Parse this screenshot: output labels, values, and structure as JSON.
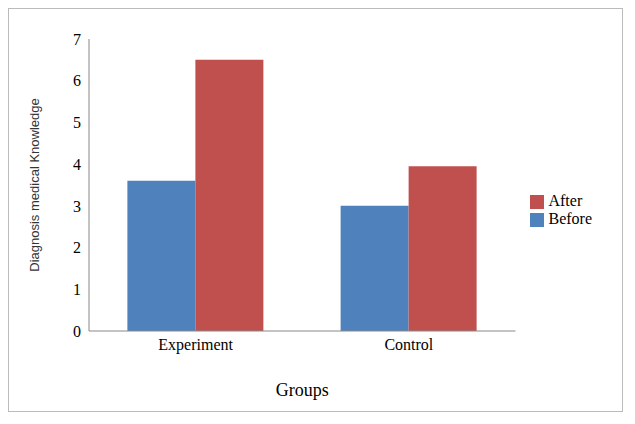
{
  "chart_data": {
    "type": "bar",
    "categories": [
      "Experiment",
      "Control"
    ],
    "series": [
      {
        "name": "Before",
        "color": "#4f81bd",
        "values": [
          3.6,
          3.0
        ]
      },
      {
        "name": "After",
        "color": "#c0504d",
        "values": [
          6.5,
          3.95
        ]
      }
    ],
    "x_label": "Groups",
    "y_label": "Diagnosis medical Knowledge",
    "ylim": [
      0,
      7
    ],
    "yticks": [
      0,
      1,
      2,
      3,
      4,
      5,
      6,
      7
    ],
    "grid": false,
    "legend": "right"
  }
}
